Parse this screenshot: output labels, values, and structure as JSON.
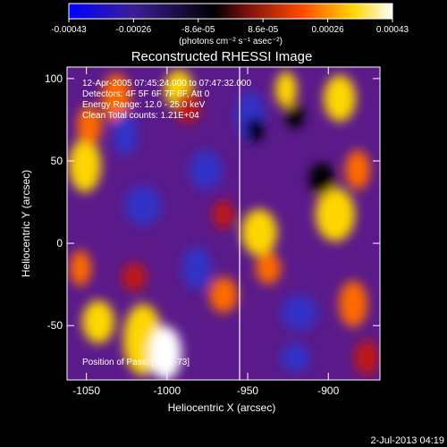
{
  "colorbar": {
    "ticks": [
      "-0.00043",
      "-0.00026",
      "-8.6e-05",
      "8.6e-05",
      "0.00026",
      "0.00043"
    ],
    "units": "(photons cm⁻² s⁻¹ asec⁻²)",
    "colors": [
      "#0000ff",
      "#3c1e96",
      "#7a2870",
      "#c03030",
      "#ff6a00",
      "#ffd700",
      "#ffffff"
    ]
  },
  "chart_data": {
    "type": "heatmap",
    "title": "Reconstructed RHESSI Image",
    "xlabel": "Heliocentric X (arcsec)",
    "ylabel": "Heliocentric Y (arcsec)",
    "xlim": [
      -1062,
      -868
    ],
    "ylim": [
      -83,
      107
    ],
    "xticks": [
      -1050,
      -1000,
      -950,
      -900
    ],
    "yticks": [
      -50,
      0,
      50,
      100
    ],
    "annotations": [
      "12-Apr-2005 07:45:24.000 to 07:47:32.000",
      "Detectors: 4F 5F 6F 7F 8F, Att 0",
      "Energy Range: 12.0 - 25.0 keV",
      "Clean     Total counts: 1.21E+04"
    ],
    "position_label": "Position of Pass: [-994,-73]",
    "limb_line_x": -955
  },
  "footer": {
    "date": "2-Jul-2013 04:19"
  }
}
